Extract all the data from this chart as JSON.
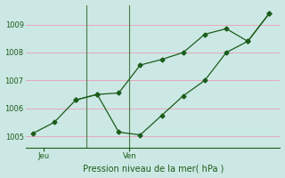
{
  "title": "Pression niveau de la mer( hPa )",
  "bg_color": "#cce8e4",
  "grid_color": "#e8a8bc",
  "line_color": "#1a5c1a",
  "line1_x": [
    0,
    1,
    2,
    3,
    4,
    5,
    6,
    7,
    8,
    9,
    10,
    11
  ],
  "line1_y": [
    1005.1,
    1005.5,
    1006.3,
    1006.5,
    1006.55,
    1007.55,
    1007.75,
    1008.0,
    1008.65,
    1008.85,
    1008.4,
    1009.4
  ],
  "line2_x": [
    2,
    3,
    4,
    5,
    6,
    7,
    8,
    9,
    10,
    11
  ],
  "line2_y": [
    1006.3,
    1006.5,
    1005.15,
    1005.05,
    1005.75,
    1006.45,
    1007.0,
    1008.0,
    1008.4,
    1009.4
  ],
  "xtick_positions": [
    0.5,
    4.5
  ],
  "xtick_labels": [
    "Jeu",
    "Ven"
  ],
  "vline_x": [
    2.5,
    4.5
  ],
  "ylim": [
    1004.6,
    1009.7
  ],
  "yticks": [
    1005,
    1006,
    1007,
    1008,
    1009
  ],
  "xlim": [
    -0.3,
    11.5
  ]
}
